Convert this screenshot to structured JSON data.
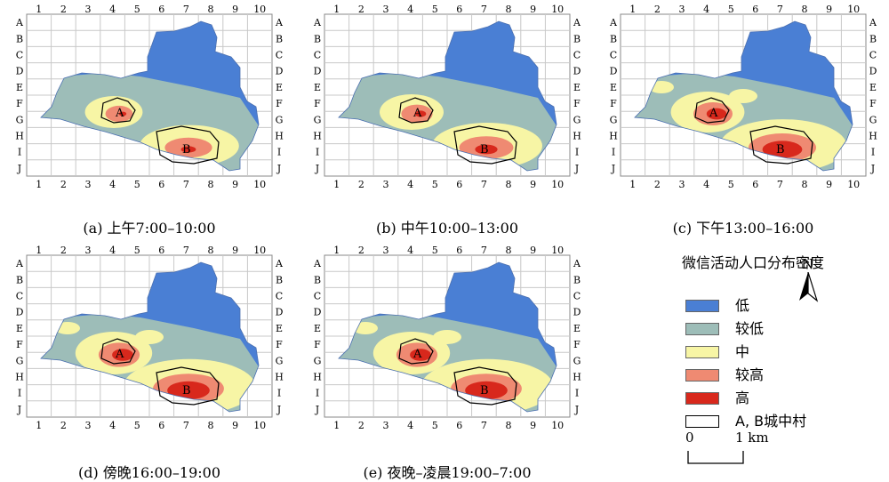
{
  "grid": {
    "columns": [
      "1",
      "2",
      "3",
      "4",
      "5",
      "6",
      "7",
      "8",
      "9",
      "10"
    ],
    "rows": [
      "A",
      "B",
      "C",
      "D",
      "E",
      "F",
      "G",
      "H",
      "I",
      "J"
    ]
  },
  "panels": [
    {
      "caption": "(a) 上午7:00–10:00",
      "area_labels": [
        "A",
        "B"
      ]
    },
    {
      "caption": "(b) 中午10:00–13:00",
      "area_labels": [
        "A",
        "B"
      ]
    },
    {
      "caption": "(c) 下午13:00–16:00",
      "area_labels": [
        "A",
        "B"
      ]
    },
    {
      "caption": "(d) 傍晚16:00–19:00",
      "area_labels": [
        "A",
        "B"
      ]
    },
    {
      "caption": "(e) 夜晚–凌晨19:00–7:00",
      "area_labels": [
        "A",
        "B"
      ]
    }
  ],
  "legend": {
    "title": "微信活动人口分布密度",
    "items": [
      {
        "label": "低",
        "color": "#4a7fd4"
      },
      {
        "label": "较低",
        "color": "#9dbdb8"
      },
      {
        "label": "中",
        "color": "#f7f5a5"
      },
      {
        "label": "较高",
        "color": "#ef8a72"
      },
      {
        "label": "高",
        "color": "#d8281c"
      },
      {
        "label": "A, B城中村",
        "color": "#ffffff"
      }
    ]
  },
  "north_arrow": {
    "label": "N"
  },
  "scale_bar": {
    "start": "0",
    "end": "1 km"
  }
}
